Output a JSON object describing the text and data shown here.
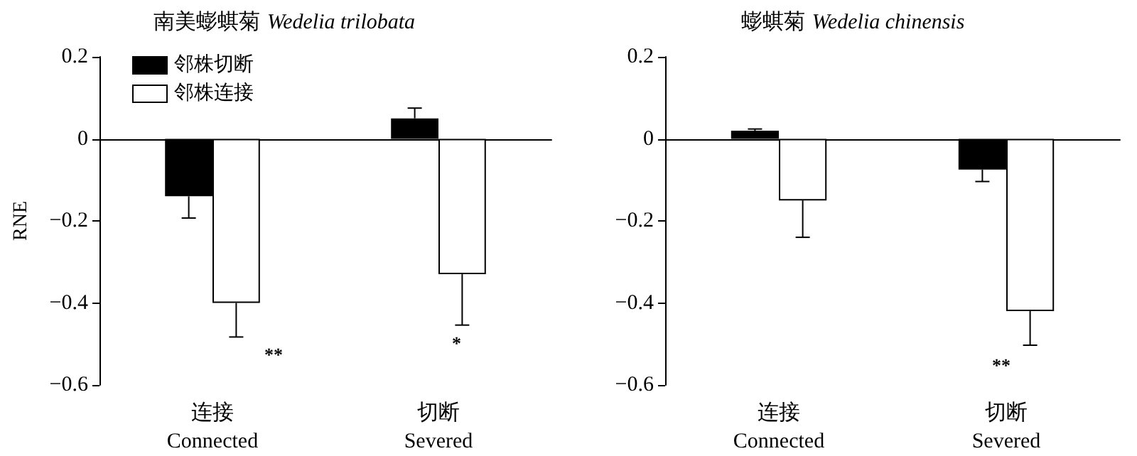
{
  "chart_data": [
    {
      "type": "bar",
      "title": "南美蟛蜞菊 Wedelia trilobata",
      "ylabel": "RNE",
      "categories": [
        "连接\nConnected",
        "切断\nSevered"
      ],
      "series": [
        {
          "name": "邻株切断",
          "color": "#000000",
          "values": [
            -0.14,
            0.05
          ],
          "errors": [
            [
              -0.193,
              -0.14
            ],
            [
              0.05,
              0.075
            ]
          ]
        },
        {
          "name": "邻株连接",
          "color": "#ffffff",
          "values": [
            -0.4,
            -0.33
          ],
          "errors": [
            [
              -0.483,
              -0.4
            ],
            [
              -0.454,
              -0.33
            ]
          ]
        }
      ],
      "ylim": [
        -0.6,
        0.2
      ],
      "yticks": [
        -0.6,
        -0.4,
        -0.2,
        0,
        0.2
      ],
      "legend": "top left",
      "annotations": [
        "**",
        "*"
      ]
    },
    {
      "type": "bar",
      "title": "蟛蜞菊 Wedelia chinensis",
      "categories": [
        "连接\nConnected",
        "切断\nSevered"
      ],
      "series": [
        {
          "color": "#000000",
          "values": [
            0.02,
            -0.075
          ],
          "errors": [
            [
              0.02,
              0.024
            ],
            [
              -0.104,
              -0.075
            ]
          ]
        },
        {
          "color": "#ffffff",
          "values": [
            -0.15,
            -0.42
          ],
          "errors": [
            [
              -0.24,
              -0.15
            ],
            [
              -0.503,
              -0.42
            ]
          ]
        }
      ],
      "ylim": [
        -0.6,
        0.2
      ],
      "yticks": [
        -0.6,
        -0.4,
        -0.2,
        0,
        0.2
      ],
      "legend": false,
      "annotations": [
        "**"
      ]
    }
  ]
}
